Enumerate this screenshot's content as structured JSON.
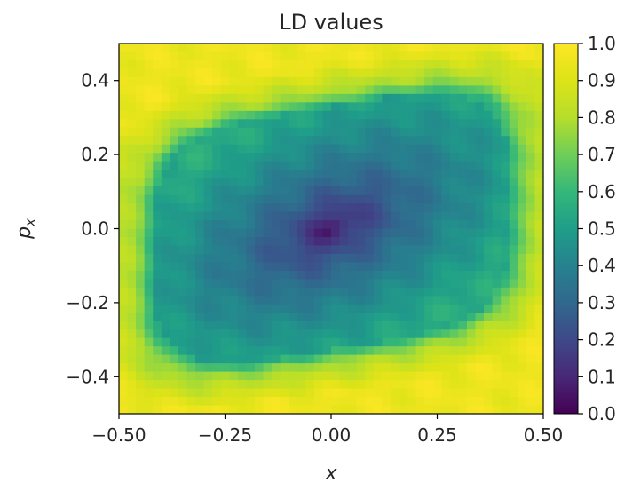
{
  "chart_data": {
    "type": "heatmap",
    "title": "LD values",
    "xlabel": "x",
    "ylabel_main": "p",
    "ylabel_sub": "x",
    "xlim": [
      -0.5,
      0.5
    ],
    "ylim": [
      -0.5,
      0.5
    ],
    "x_ticks": [
      -0.5,
      -0.25,
      0.0,
      0.25,
      0.5
    ],
    "x_tick_labels": [
      "−0.50",
      "−0.25",
      "0.00",
      "0.25",
      "0.50"
    ],
    "y_ticks": [
      0.4,
      0.2,
      0.0,
      -0.2,
      -0.4
    ],
    "y_tick_labels": [
      "0.4",
      "0.2",
      "0.0",
      "−0.2",
      "−0.4"
    ],
    "colorbar": {
      "colormap": "viridis",
      "range": [
        0.0,
        1.0
      ],
      "ticks": [
        0.0,
        0.1,
        0.2,
        0.3,
        0.4,
        0.5,
        0.6,
        0.7,
        0.8,
        0.9,
        1.0
      ],
      "tick_labels": [
        "0.0",
        "0.1",
        "0.2",
        "0.3",
        "0.4",
        "0.5",
        "0.6",
        "0.7",
        "0.8",
        "0.9",
        "1.0"
      ]
    },
    "field": {
      "minimum_location": [
        0.0,
        0.0
      ],
      "minimum_value": 0.0,
      "center_region_value": 0.4,
      "separatrix_band_value": 0.5,
      "inner_ring_value": 0.7,
      "outer_region_value": 0.95
    }
  }
}
